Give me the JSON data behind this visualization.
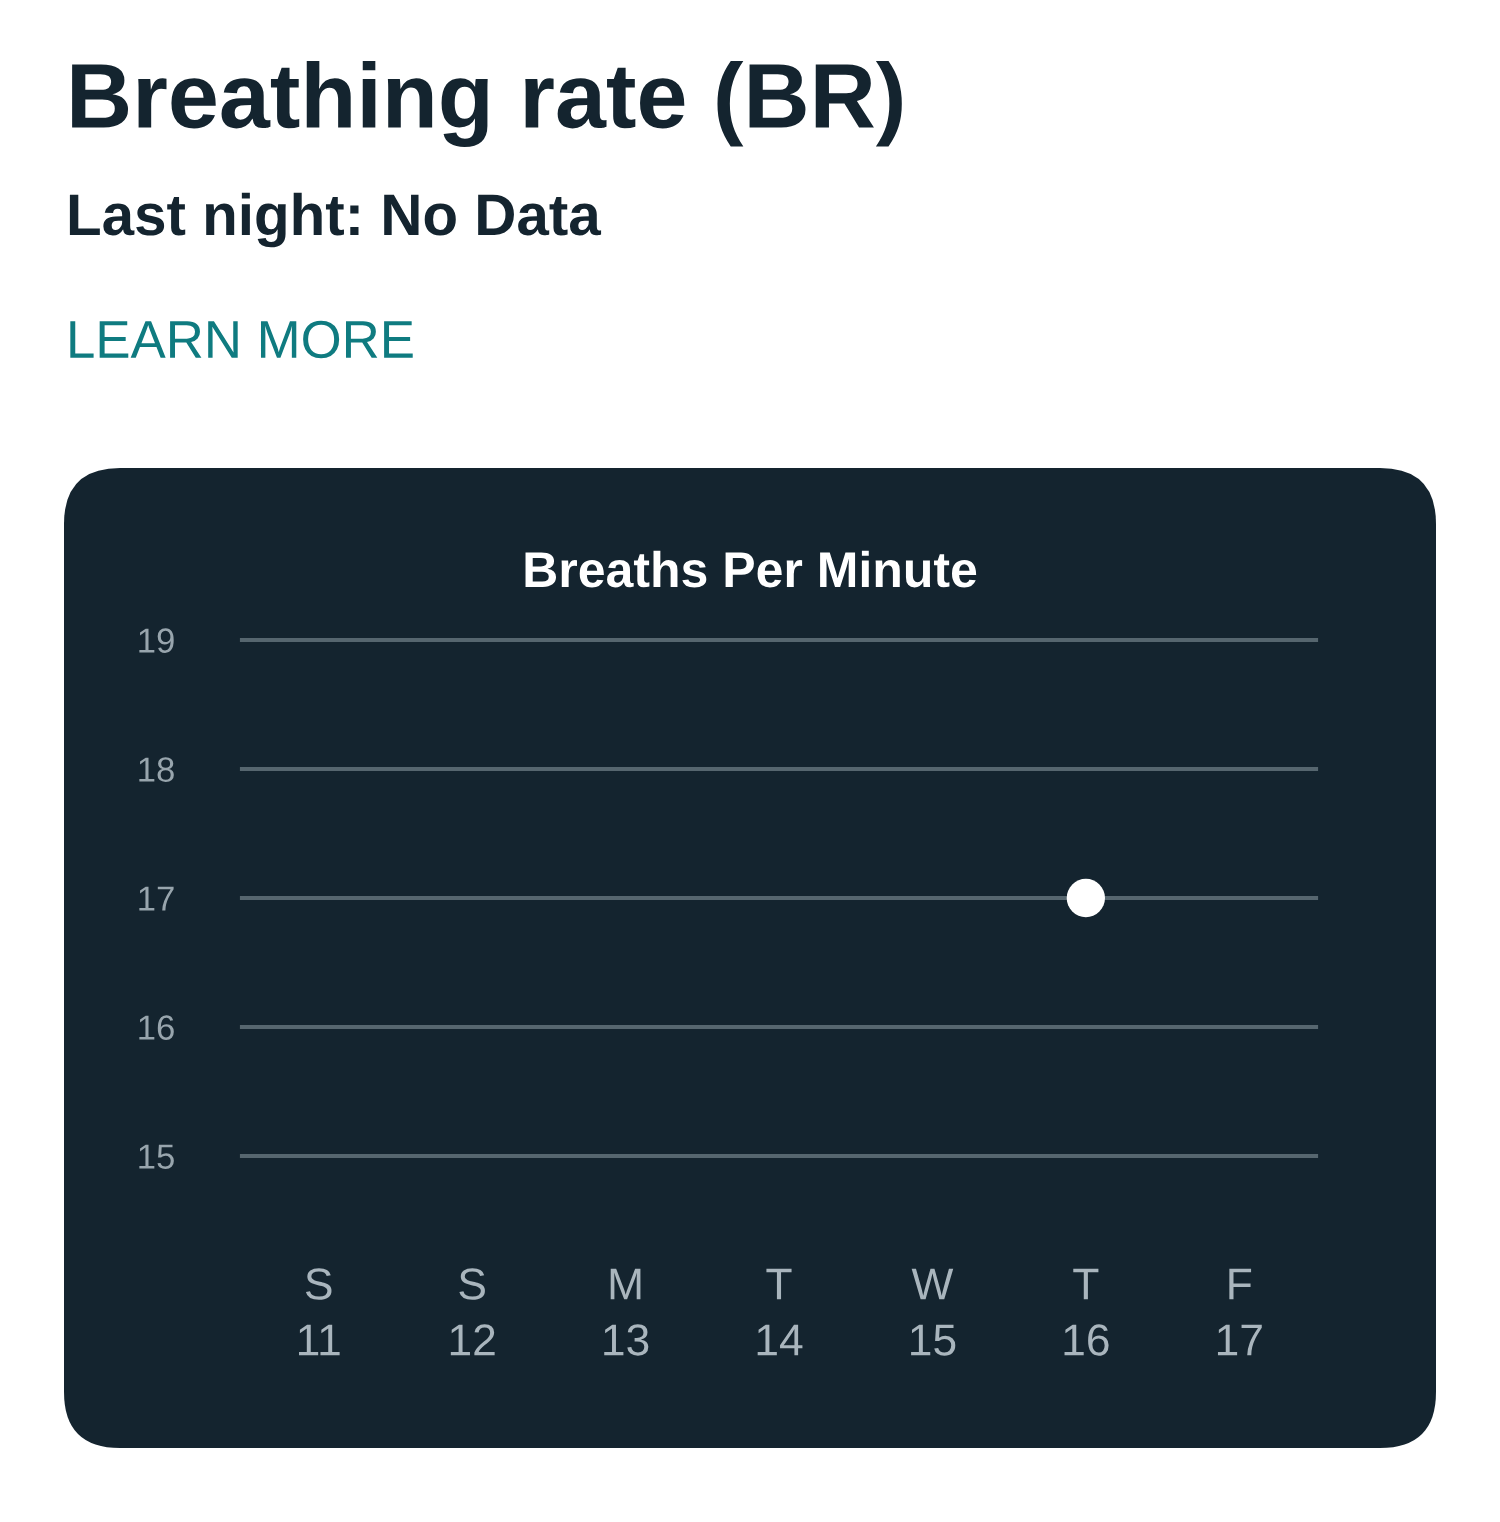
{
  "chart_data": {
    "type": "scatter",
    "title": "Breathing rate (BR)",
    "subtitle": "Last night: No Data",
    "annotations": [
      "LEARN MORE"
    ],
    "ylabel": "Breaths Per Minute",
    "categories": [
      "S\n11",
      "S\n12",
      "M\n13",
      "T\n14",
      "W\n15",
      "T\n16",
      "F\n17"
    ],
    "series": [
      {
        "color": "#ffffff",
        "values": [
          null,
          null,
          null,
          null,
          null,
          17,
          null
        ]
      }
    ],
    "ylim": [
      15,
      19
    ],
    "yticks": [
      15,
      16,
      17,
      18,
      19
    ],
    "grid": "y",
    "marker": "circle"
  }
}
